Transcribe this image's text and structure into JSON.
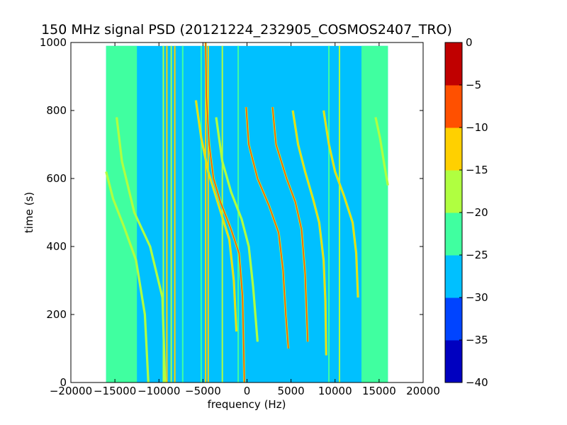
{
  "chart_data": {
    "type": "heatmap",
    "title": "150 MHz signal PSD (20121224_232905_COSMOS2407_TRO)",
    "xlabel": "frequency (Hz)",
    "ylabel": "time (s)",
    "xlim": [
      -20000,
      20000
    ],
    "ylim": [
      0,
      1000
    ],
    "x_ticks": [
      -20000,
      -15000,
      -10000,
      -5000,
      0,
      5000,
      10000,
      15000,
      20000
    ],
    "x_tick_labels": [
      "−20000",
      "−15000",
      "−10000",
      "−5000",
      "0",
      "5000",
      "10000",
      "15000",
      "20000"
    ],
    "y_ticks": [
      0,
      200,
      400,
      600,
      800,
      1000
    ],
    "y_tick_labels": [
      "0",
      "200",
      "400",
      "600",
      "800",
      "1000"
    ],
    "data_extent": {
      "x": [
        -16000,
        16000
      ],
      "y": [
        0,
        990
      ]
    },
    "background_level": -28,
    "edge_band_level": -23,
    "colorbar": {
      "levels": [
        -40,
        -35,
        -30,
        -25,
        -20,
        -15,
        -10,
        -5,
        0
      ],
      "tick_labels": [
        "−40",
        "−35",
        "−30",
        "−25",
        "−20",
        "−15",
        "−10",
        "−5",
        "0"
      ],
      "colors": [
        "#0000c0",
        "#0044ff",
        "#00c0ff",
        "#40ffa0",
        "#b0ff40",
        "#ffd000",
        "#ff5000",
        "#c00000"
      ]
    },
    "vertical_lines": [
      {
        "freq": -9500,
        "level": -18
      },
      {
        "freq": -9100,
        "level": -15
      },
      {
        "freq": -8600,
        "level": -16
      },
      {
        "freq": -8200,
        "level": -14
      },
      {
        "freq": -7300,
        "level": -22
      },
      {
        "freq": -5200,
        "level": -22
      },
      {
        "freq": -4700,
        "level": -12
      },
      {
        "freq": -4400,
        "level": -15
      },
      {
        "freq": -2800,
        "level": -17
      },
      {
        "freq": -1000,
        "level": -22
      },
      {
        "freq": 10500,
        "level": -18
      },
      {
        "freq": 9300,
        "level": -22
      }
    ],
    "tracks": [
      {
        "name": "",
        "level": -18,
        "points": [
          [
            -16000,
            620
          ],
          [
            -15200,
            540
          ],
          [
            -14000,
            460
          ],
          [
            -12600,
            360
          ],
          [
            -11600,
            200
          ],
          [
            -11200,
            0
          ]
        ]
      },
      {
        "name": "",
        "level": -18,
        "points": [
          [
            -14800,
            780
          ],
          [
            -14200,
            650
          ],
          [
            -12800,
            500
          ],
          [
            -11000,
            400
          ],
          [
            -9600,
            250
          ],
          [
            -9300,
            0
          ]
        ]
      },
      {
        "name": "",
        "level": -10,
        "points": [
          [
            -4700,
            1000
          ],
          [
            -4600,
            840
          ],
          [
            -4300,
            700
          ],
          [
            -3800,
            600
          ],
          [
            -3000,
            530
          ],
          [
            -1800,
            450
          ],
          [
            -900,
            380
          ],
          [
            -500,
            250
          ],
          [
            -300,
            0
          ]
        ]
      },
      {
        "name": "",
        "level": -15,
        "points": [
          [
            -5800,
            830
          ],
          [
            -5200,
            720
          ],
          [
            -4400,
            620
          ],
          [
            -3200,
            520
          ],
          [
            -2000,
            420
          ],
          [
            -1500,
            300
          ],
          [
            -1200,
            150
          ]
        ]
      },
      {
        "name": "",
        "level": -17,
        "points": [
          [
            -3500,
            780
          ],
          [
            -2800,
            650
          ],
          [
            -1800,
            560
          ],
          [
            -600,
            480
          ],
          [
            200,
            400
          ],
          [
            700,
            280
          ],
          [
            1200,
            120
          ]
        ]
      },
      {
        "name": "",
        "level": -8,
        "points": [
          [
            -100,
            810
          ],
          [
            200,
            700
          ],
          [
            1200,
            600
          ],
          [
            2500,
            520
          ],
          [
            3600,
            440
          ],
          [
            4100,
            330
          ],
          [
            4400,
            200
          ],
          [
            4700,
            100
          ]
        ]
      },
      {
        "name": "",
        "level": -10,
        "points": [
          [
            2900,
            810
          ],
          [
            3300,
            700
          ],
          [
            4500,
            600
          ],
          [
            5500,
            530
          ],
          [
            6200,
            450
          ],
          [
            6600,
            320
          ],
          [
            6900,
            120
          ]
        ]
      },
      {
        "name": "",
        "level": -15,
        "points": [
          [
            5200,
            800
          ],
          [
            5800,
            700
          ],
          [
            6600,
            620
          ],
          [
            7500,
            540
          ],
          [
            8200,
            470
          ],
          [
            8700,
            360
          ],
          [
            8900,
            240
          ],
          [
            9000,
            80
          ]
        ]
      },
      {
        "name": "",
        "level": -15,
        "points": [
          [
            8700,
            800
          ],
          [
            9300,
            700
          ],
          [
            10000,
            620
          ],
          [
            11000,
            550
          ],
          [
            12000,
            470
          ],
          [
            12400,
            380
          ],
          [
            12600,
            250
          ]
        ]
      },
      {
        "name": "",
        "level": -18,
        "points": [
          [
            14600,
            780
          ],
          [
            15100,
            720
          ],
          [
            15600,
            640
          ],
          [
            16000,
            580
          ]
        ]
      }
    ]
  }
}
